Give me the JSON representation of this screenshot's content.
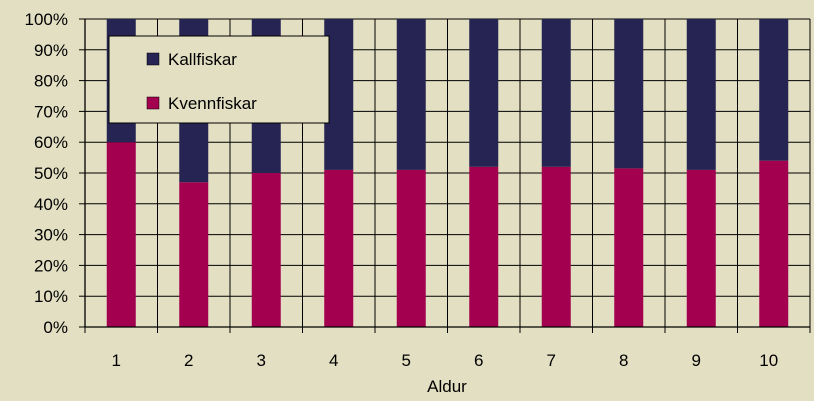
{
  "chart_data": {
    "type": "bar",
    "stacked": "percent",
    "title": "",
    "xlabel": "Aldur",
    "ylabel": "",
    "categories": [
      "1",
      "2",
      "3",
      "4",
      "5",
      "6",
      "7",
      "8",
      "9",
      "10"
    ],
    "series": [
      {
        "name": "Kvennfiskar",
        "color": "#a3004f",
        "values": [
          60,
          47,
          50,
          51,
          51,
          52,
          52,
          51.5,
          51,
          54
        ]
      },
      {
        "name": "Kallfiskar",
        "color": "#262452",
        "values": [
          40,
          53,
          50,
          49,
          49,
          48,
          48,
          48.5,
          49,
          46
        ]
      }
    ],
    "ylim": [
      0,
      100
    ],
    "yticks": [
      "0%",
      "10%",
      "20%",
      "30%",
      "40%",
      "50%",
      "60%",
      "70%",
      "80%",
      "90%",
      "100%"
    ],
    "grid": true,
    "legend": {
      "placement": "top-left inside plot",
      "entries": [
        "Kallfiskar",
        "Kvennfiskar"
      ]
    }
  },
  "colors": {
    "background": "#e2dfc2",
    "grid": "#000000"
  }
}
